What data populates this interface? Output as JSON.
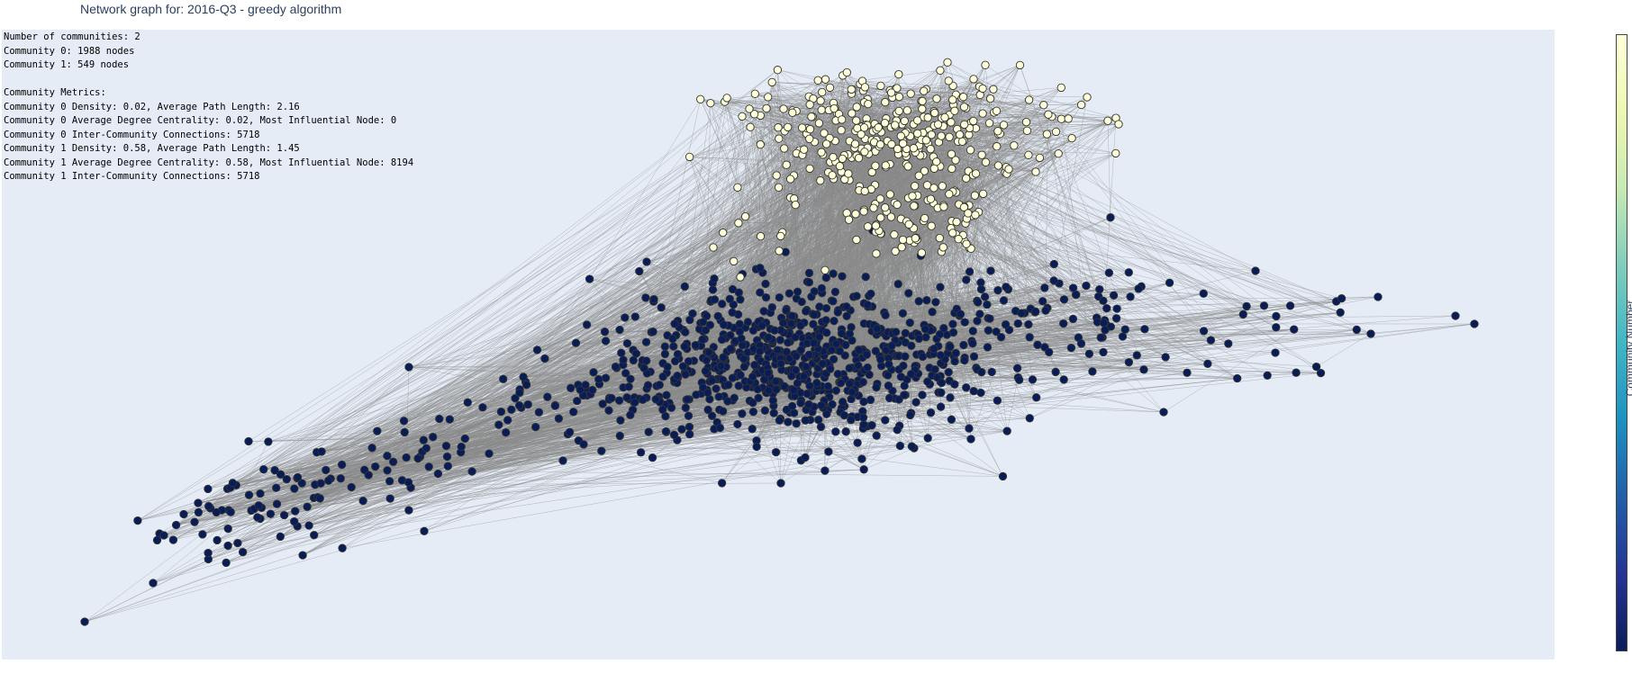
{
  "title": "Network graph for: 2016-Q3 - greedy algorithm",
  "annotation_lines": [
    "Number of communities: 2",
    "Community 0: 1988 nodes",
    "Community 1: 549 nodes",
    "",
    "Community Metrics:",
    "Community 0 Density: 0.02, Average Path Length: 2.16",
    "Community 0 Average Degree Centrality: 0.02, Most Influential Node: 0",
    "Community 0 Inter-Community Connections: 5718",
    "Community 1 Density: 0.58, Average Path Length: 1.45",
    "Community 1 Average Degree Centrality: 0.58, Most Influential Node: 8194",
    "Community 1 Inter-Community Connections: 5718"
  ],
  "colors": {
    "plot_bg": "#e5ecf6",
    "edge": "#888888",
    "community_0": "#081d58",
    "community_1": "#ffffd9",
    "marker_outline": "#333333"
  },
  "chart_data": {
    "type": "scatter",
    "subtype": "network-graph",
    "title": "Network graph for: 2016-Q3 - greedy algorithm",
    "communities": [
      {
        "id": 0,
        "nodes": 1988,
        "color_value": 0
      },
      {
        "id": 1,
        "nodes": 549,
        "color_value": 1
      }
    ],
    "inter_community_connections": 5718,
    "colorbar": {
      "title": "Community Number",
      "range": [
        0,
        1
      ],
      "ticks": [
        "0",
        "0.2",
        "0.4",
        "0.6",
        "0.8",
        "1"
      ],
      "tick_values": [
        0,
        0.2,
        0.4,
        0.6,
        0.8,
        1
      ],
      "colorscale": [
        "#081d58",
        "#253494",
        "#225ea8",
        "#1d91c0",
        "#41b6c4",
        "#7fcdbb",
        "#c7e9b4",
        "#edf8b1",
        "#ffffd9"
      ]
    },
    "grid": false,
    "axes_visible": false
  }
}
